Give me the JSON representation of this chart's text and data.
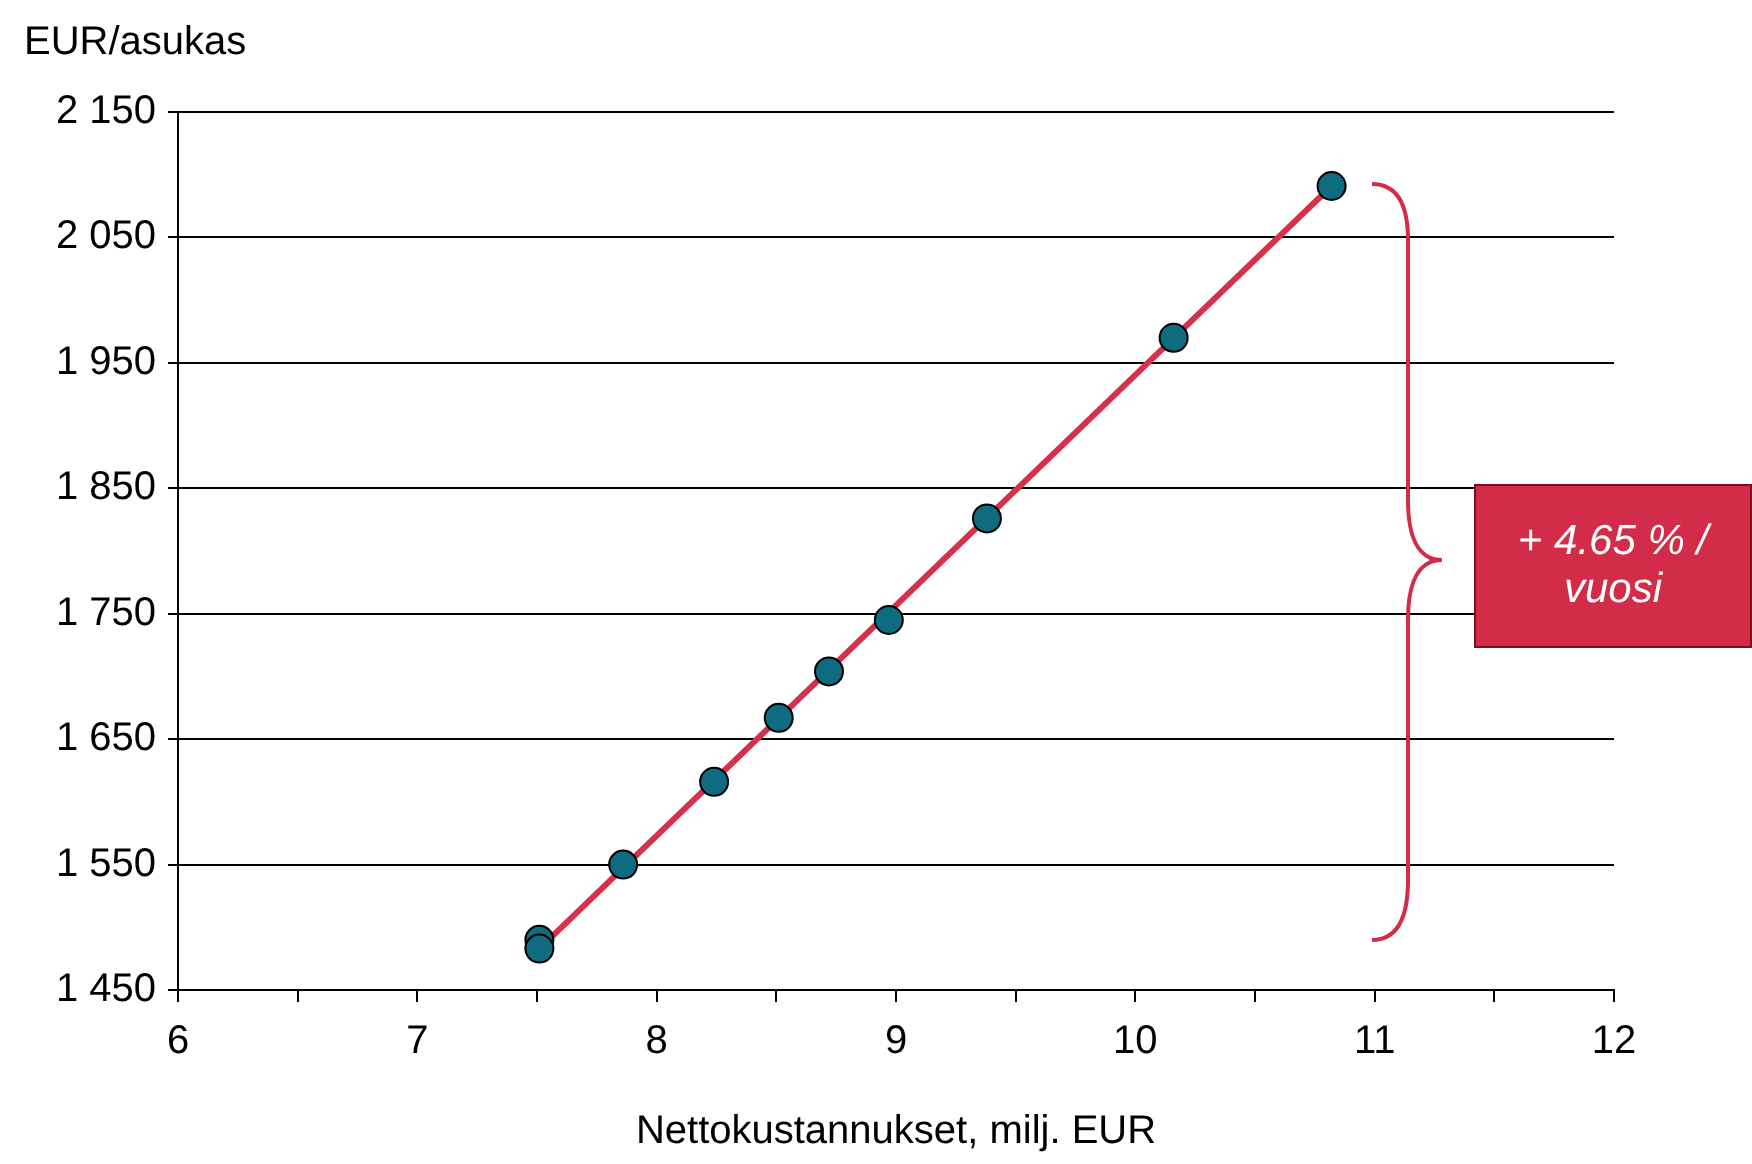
{
  "chart_data": {
    "type": "scatter",
    "xlabel": "Nettokustannukset, milj. EUR",
    "ylabel": "EUR/asukas",
    "xlim": [
      6,
      12
    ],
    "xticks": [
      6,
      {
        "value": 6.5,
        "label": null
      },
      7,
      {
        "value": 7.5,
        "label": null
      },
      8,
      {
        "value": 8.5,
        "label": null
      },
      9,
      {
        "value": 9.5,
        "label": null
      },
      10,
      {
        "value": 10.5,
        "label": null
      },
      11,
      {
        "value": 11.5,
        "label": null
      },
      12
    ],
    "ylim": [
      1450,
      2150
    ],
    "yticks": [
      {
        "value": 1450,
        "label": "1 450"
      },
      {
        "value": 1550,
        "label": "1 550"
      },
      {
        "value": 1650,
        "label": "1 650"
      },
      {
        "value": 1750,
        "label": "1 750"
      },
      {
        "value": 1850,
        "label": "1 850"
      },
      {
        "value": 1950,
        "label": "1 950"
      },
      {
        "value": 2050,
        "label": "2 050"
      },
      {
        "value": 2150,
        "label": "2 150"
      }
    ],
    "grid": "y",
    "legend": false,
    "marker": "circle",
    "series": [
      {
        "type": "line",
        "color": "#d6304a",
        "marker": "none",
        "x": [
          7.51,
          10.82
        ],
        "values": [
          1483,
          2091
        ]
      },
      {
        "type": "scatter",
        "color": "#0f6b7f",
        "x": [
          7.51,
          7.51,
          7.86,
          8.24,
          8.51,
          8.72,
          8.97,
          9.38,
          10.16,
          10.82
        ],
        "values": [
          1490,
          1483,
          1550,
          1616,
          1667,
          1704,
          1745,
          1826,
          1970,
          2091
        ]
      }
    ],
    "annotations": [
      "+ 4.65 % / vuosi"
    ]
  }
}
